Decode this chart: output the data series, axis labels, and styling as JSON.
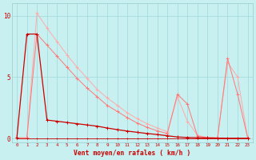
{
  "background_color": "#c8f0f0",
  "grid_color": "#a0d8d8",
  "x_values": [
    0,
    1,
    2,
    3,
    4,
    5,
    6,
    7,
    8,
    9,
    10,
    11,
    12,
    13,
    14,
    15,
    16,
    17,
    18,
    19,
    20,
    21,
    22,
    23
  ],
  "line_light_y": [
    0.05,
    0.05,
    10.2,
    9.0,
    7.9,
    6.8,
    5.8,
    4.9,
    4.0,
    3.3,
    2.7,
    2.1,
    1.6,
    1.2,
    0.85,
    0.55,
    3.4,
    1.4,
    0.25,
    0.08,
    0.05,
    6.2,
    5.0,
    0.05
  ],
  "line_medium_y": [
    0.05,
    0.05,
    8.5,
    7.6,
    6.7,
    5.8,
    4.9,
    4.1,
    3.4,
    2.7,
    2.2,
    1.7,
    1.25,
    0.9,
    0.62,
    0.4,
    3.6,
    2.8,
    0.18,
    0.06,
    0.04,
    6.5,
    3.6,
    0.05
  ],
  "line_dark_y": [
    0.05,
    8.5,
    8.5,
    1.5,
    1.4,
    1.3,
    1.2,
    1.1,
    1.0,
    0.85,
    0.72,
    0.6,
    0.5,
    0.4,
    0.32,
    0.22,
    0.12,
    0.08,
    0.06,
    0.04,
    0.03,
    0.02,
    0.02,
    0.02
  ],
  "line_bottom_y": [
    0.02,
    0.02,
    0.02,
    0.02,
    0.02,
    0.02,
    0.02,
    0.02,
    0.02,
    0.02,
    0.02,
    0.02,
    0.02,
    0.02,
    0.02,
    0.02,
    0.02,
    0.02,
    0.02,
    0.02,
    0.02,
    0.02,
    0.02,
    0.02
  ],
  "color_light": "#ffaaaa",
  "color_medium": "#ff7777",
  "color_dark": "#cc0000",
  "color_bottom": "#cc0000",
  "xlabel": "Vent moyen/en rafales ( km/h )",
  "yticks": [
    0,
    5,
    10
  ],
  "xlim": [
    -0.5,
    23.5
  ],
  "ylim": [
    -0.3,
    11.0
  ]
}
